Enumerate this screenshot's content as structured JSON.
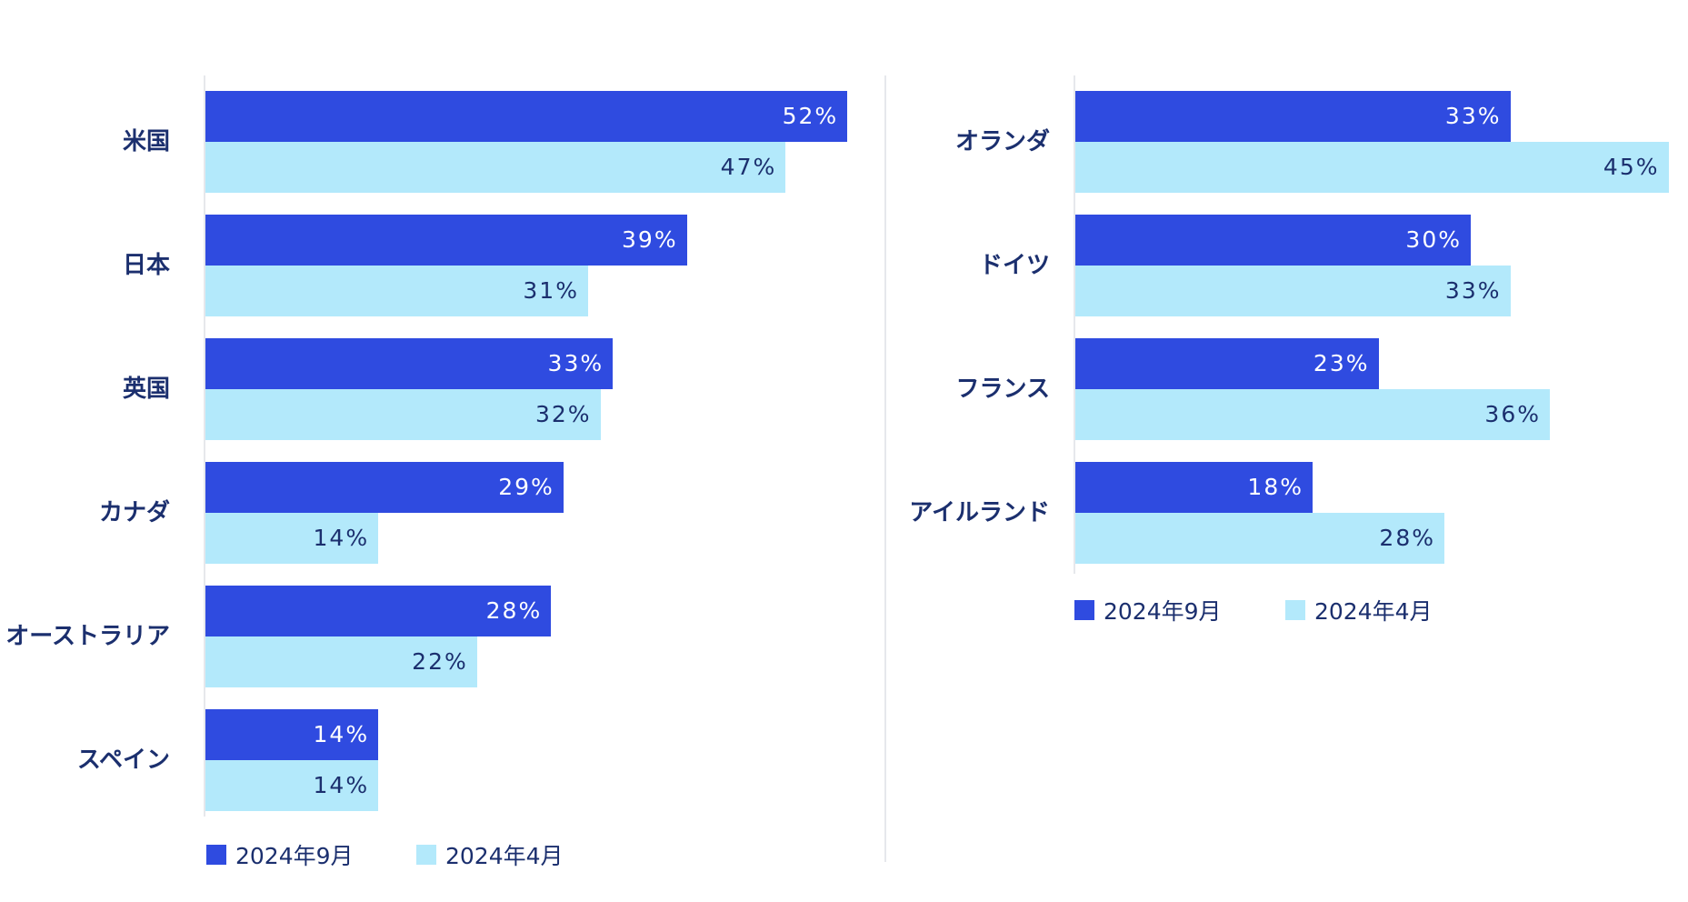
{
  "colors": {
    "sep2024": "#2f4be0",
    "apr2024": "#b3e9fb",
    "label_text": "#1b2f6e"
  },
  "chart_data": [
    {
      "type": "bar",
      "orientation": "horizontal",
      "categories": [
        "米国",
        "日本",
        "英国",
        "カナダ",
        "オーストラリア",
        "スペイン"
      ],
      "series": [
        {
          "name": "2024年9月",
          "values": [
            52,
            39,
            33,
            29,
            28,
            14
          ],
          "labels": [
            "52%",
            "39%",
            "33%",
            "29%",
            "28%",
            "14%"
          ]
        },
        {
          "name": "2024年4月",
          "values": [
            47,
            31,
            32,
            14,
            22,
            14
          ],
          "labels": [
            "47%",
            "31%",
            "32%",
            "14%",
            "22%",
            "14%"
          ]
        }
      ],
      "unit": "%",
      "legend": [
        "2024年9月",
        "2024年4月"
      ],
      "legend_position": "bottom-left",
      "grid": false
    },
    {
      "type": "bar",
      "orientation": "horizontal",
      "categories": [
        "オランダ",
        "ドイツ",
        "フランス",
        "アイルランド"
      ],
      "series": [
        {
          "name": "2024年9月",
          "values": [
            33,
            30,
            23,
            18
          ],
          "labels": [
            "33%",
            "30%",
            "23%",
            "18%"
          ]
        },
        {
          "name": "2024年4月",
          "values": [
            45,
            33,
            36,
            28
          ],
          "labels": [
            "45%",
            "33%",
            "36%",
            "28%"
          ]
        }
      ],
      "unit": "%",
      "legend": [
        "2024年9月",
        "2024年4月"
      ],
      "legend_position": "bottom-left",
      "grid": false
    }
  ]
}
